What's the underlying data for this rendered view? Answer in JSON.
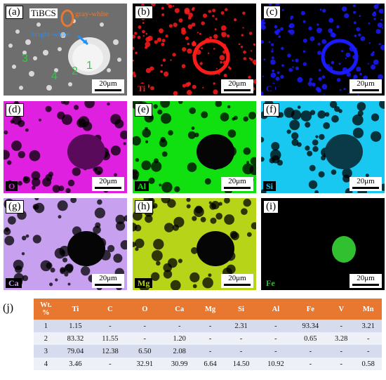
{
  "panels": {
    "a": {
      "label": "(a)",
      "scale": "20μm",
      "title": "TiBCS",
      "gray_white": "gray-white",
      "bright_white": "bright-white",
      "points": [
        "1",
        "2",
        "3",
        "4"
      ]
    },
    "b": {
      "label": "(b)",
      "scale": "20μm",
      "element": "Ti",
      "color": "#ff1a1a"
    },
    "c": {
      "label": "(c)",
      "scale": "20μm",
      "element": "C",
      "color": "#1a1aff"
    },
    "d": {
      "label": "(d)",
      "scale": "20μm",
      "element": "O",
      "color": "#e020e0"
    },
    "e": {
      "label": "(e)",
      "scale": "20μm",
      "element": "Al",
      "color": "#10e010"
    },
    "f": {
      "label": "(f)",
      "scale": "20μm",
      "element": "Si",
      "color": "#18c8f0"
    },
    "g": {
      "label": "(g)",
      "scale": "20μm",
      "element": "Ca",
      "color": "#c8a0f0"
    },
    "h": {
      "label": "(h)",
      "scale": "20μm",
      "element": "Mg",
      "color": "#b8d418"
    },
    "i": {
      "label": "(i)",
      "scale": "20μm",
      "element": "Fe",
      "color": "#30c030"
    }
  },
  "table": {
    "label": "(j)",
    "header_line1": "Wt.",
    "header_line2": "%",
    "columns": [
      "Ti",
      "C",
      "O",
      "Ca",
      "Mg",
      "Si",
      "Al",
      "Fe",
      "V",
      "Mn"
    ],
    "rows": [
      [
        "1",
        "1.15",
        "-",
        "-",
        "-",
        "-",
        "2.31",
        "-",
        "93.34",
        "-",
        "3.21"
      ],
      [
        "2",
        "83.32",
        "11.55",
        "-",
        "1.20",
        "-",
        "-",
        "-",
        "0.65",
        "3.28",
        "-"
      ],
      [
        "3",
        "79.04",
        "12.38",
        "6.50",
        "2.08",
        "-",
        "-",
        "-",
        "-",
        "-",
        "-"
      ],
      [
        "4",
        "3.46",
        "-",
        "32.91",
        "30.99",
        "6.64",
        "14.50",
        "10.92",
        "-",
        "-",
        "0.58"
      ]
    ]
  },
  "colors": {
    "table_header": "#e8782f",
    "row_odd": "#d6dcee",
    "row_even": "#eef0f7",
    "gray_white_marker": "#e8782f",
    "bright_white_marker": "#1e90ff"
  }
}
